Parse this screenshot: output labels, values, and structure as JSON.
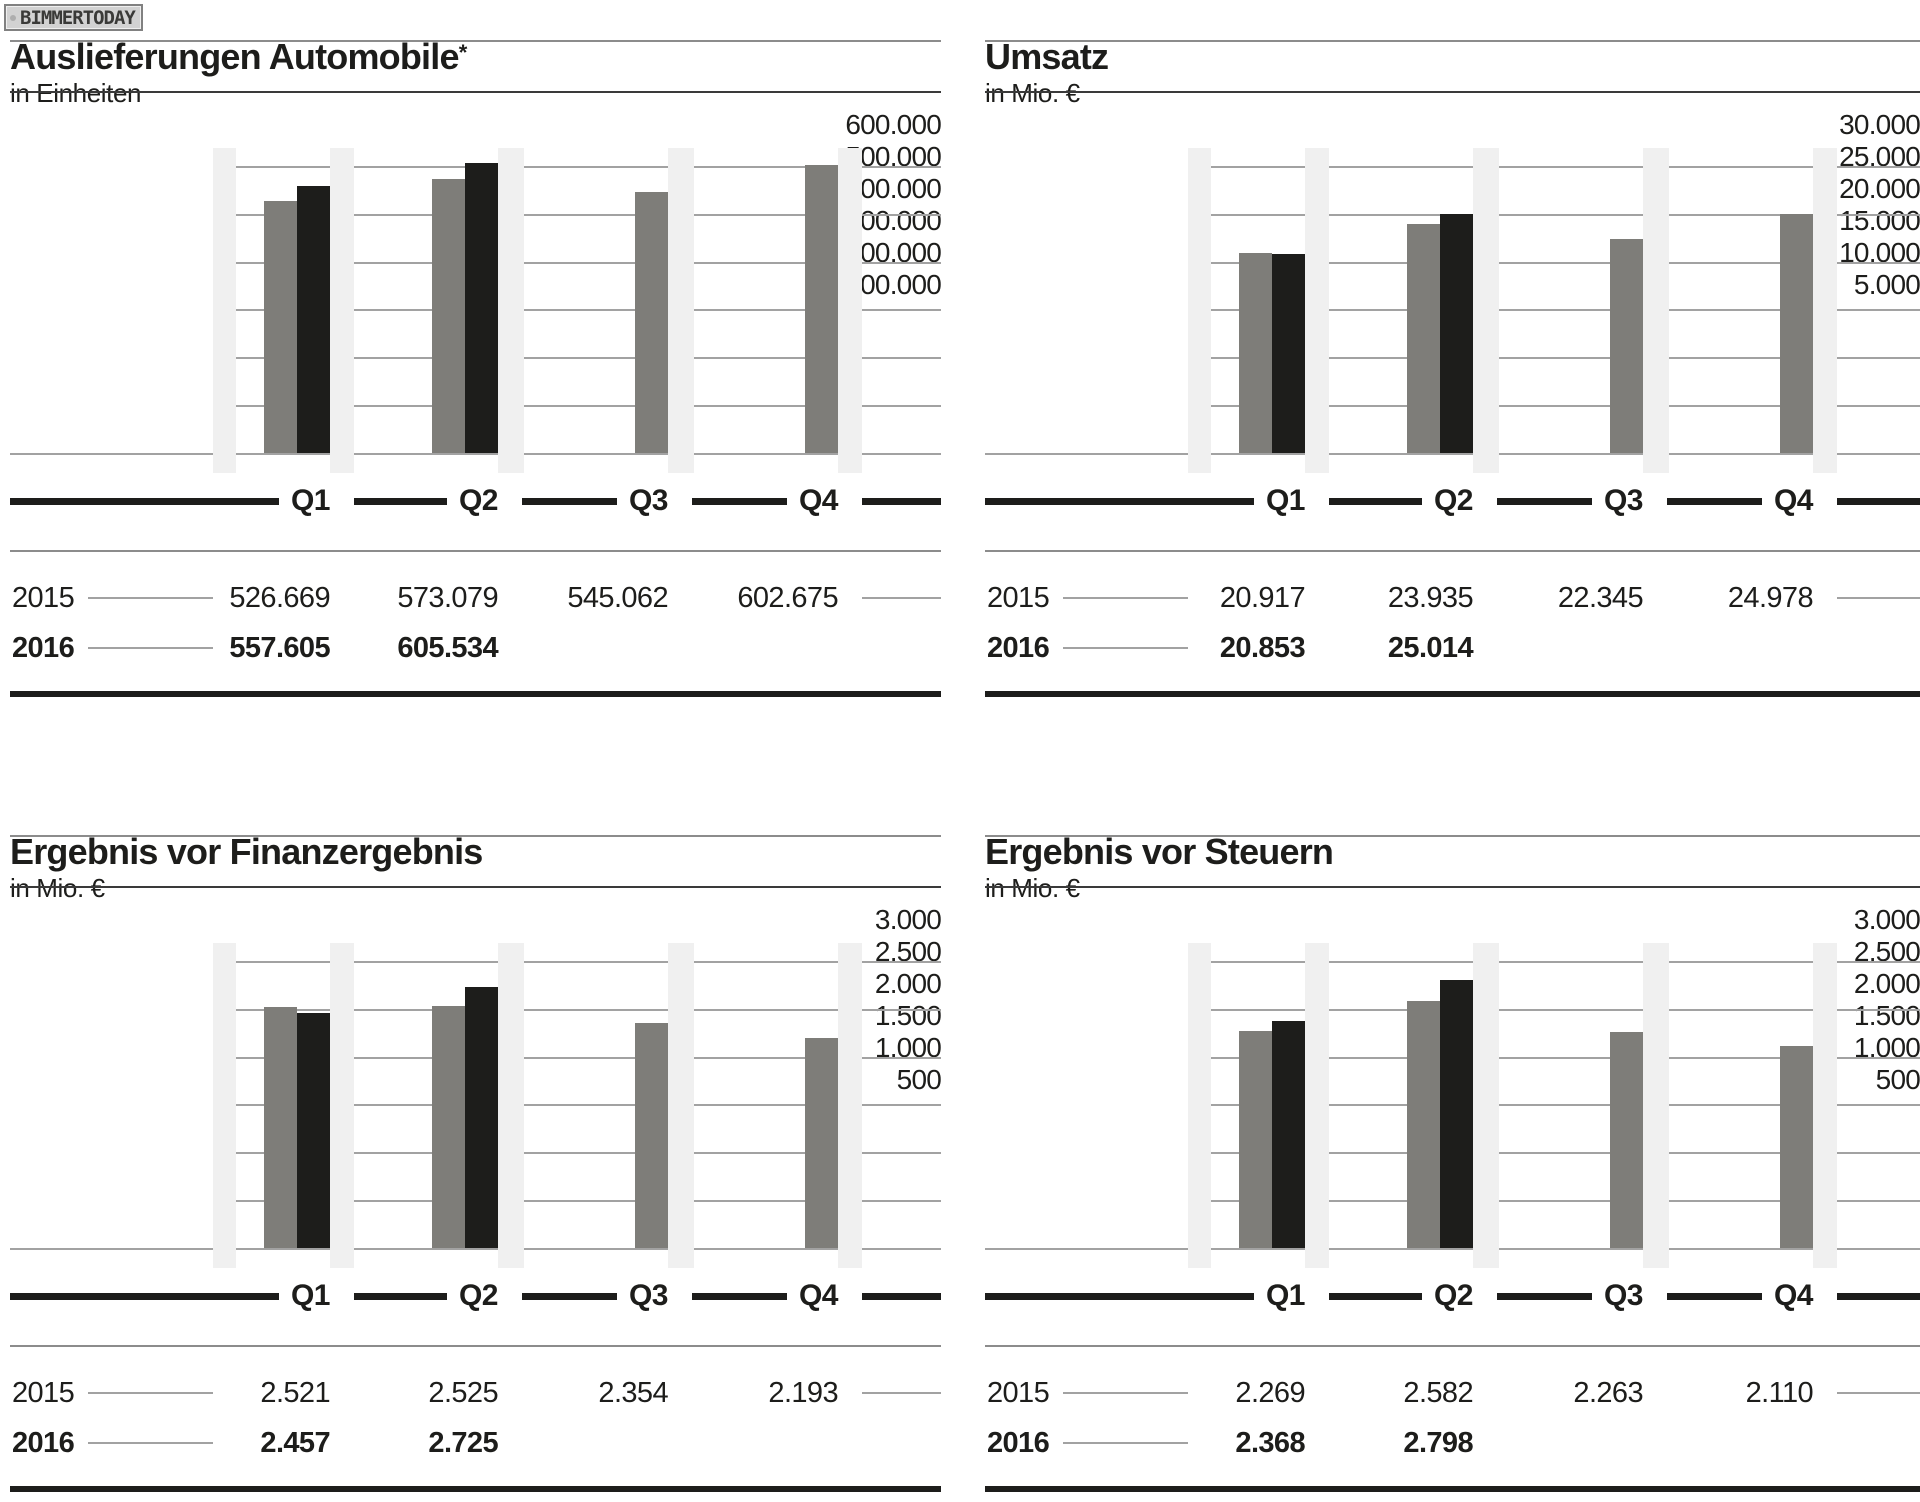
{
  "logo": {
    "text": "BIMMERTODAY"
  },
  "colors": {
    "text": "#1d1d1b",
    "bar_2015": "#7e7d79",
    "bar_2016": "#1d1d1b",
    "gridline": "#a2a2a2",
    "thin_rule": "#8c8c8c",
    "title_rule": "#3a3a3a",
    "table_rule": "#a2a2a2",
    "band": "#f0f0f0",
    "thick_rule": "#1d1d1b"
  },
  "chart_data": [
    {
      "type": "bar",
      "title": "Auslieferungen Automobile",
      "title_superscript": "*",
      "subtitle": "in Einheiten",
      "categories": [
        "Q1",
        "Q2",
        "Q3",
        "Q4"
      ],
      "ylim": [
        0,
        600000
      ],
      "grid": true,
      "legend_position": "none",
      "ytick_labels": [
        "600.000",
        "500.000",
        "400.000",
        "300.000",
        "200.000",
        "100.000"
      ],
      "series": [
        {
          "name": "2015",
          "color_key": "bar_2015",
          "values": [
            526669,
            573079,
            545062,
            602675
          ]
        },
        {
          "name": "2016",
          "color_key": "bar_2016",
          "values": [
            557605,
            605534,
            null,
            null
          ]
        }
      ],
      "table": {
        "rows": [
          {
            "year": "2015",
            "bold": false,
            "trailing_line": true,
            "values": [
              "526.669",
              "573.079",
              "545.062",
              "602.675"
            ]
          },
          {
            "year": "2016",
            "bold": true,
            "trailing_line": false,
            "values": [
              "557.605",
              "605.534",
              "",
              ""
            ]
          }
        ]
      }
    },
    {
      "type": "bar",
      "title": "Umsatz",
      "title_superscript": "",
      "subtitle": "in Mio. €",
      "categories": [
        "Q1",
        "Q2",
        "Q3",
        "Q4"
      ],
      "ylim": [
        0,
        30000
      ],
      "grid": true,
      "legend_position": "none",
      "ytick_labels": [
        "30.000",
        "25.000",
        "20.000",
        "15.000",
        "10.000",
        "5.000"
      ],
      "series": [
        {
          "name": "2015",
          "color_key": "bar_2015",
          "values": [
            20917,
            23935,
            22345,
            24978
          ]
        },
        {
          "name": "2016",
          "color_key": "bar_2016",
          "values": [
            20853,
            25014,
            null,
            null
          ]
        }
      ],
      "table": {
        "rows": [
          {
            "year": "2015",
            "bold": false,
            "trailing_line": true,
            "values": [
              "20.917",
              "23.935",
              "22.345",
              "24.978"
            ]
          },
          {
            "year": "2016",
            "bold": true,
            "trailing_line": false,
            "values": [
              "20.853",
              "25.014",
              "",
              ""
            ]
          }
        ]
      }
    },
    {
      "type": "bar",
      "title": "Ergebnis vor Finanzergebnis",
      "title_superscript": "",
      "subtitle": "in Mio. €",
      "categories": [
        "Q1",
        "Q2",
        "Q3",
        "Q4"
      ],
      "ylim": [
        0,
        3000
      ],
      "grid": true,
      "legend_position": "none",
      "ytick_labels": [
        "3.000",
        "2.500",
        "2.000",
        "1.500",
        "1.000",
        "500"
      ],
      "series": [
        {
          "name": "2015",
          "color_key": "bar_2015",
          "values": [
            2521,
            2525,
            2354,
            2193
          ]
        },
        {
          "name": "2016",
          "color_key": "bar_2016",
          "values": [
            2457,
            2725,
            null,
            null
          ]
        }
      ],
      "table": {
        "rows": [
          {
            "year": "2015",
            "bold": false,
            "trailing_line": true,
            "values": [
              "2.521",
              "2.525",
              "2.354",
              "2.193"
            ]
          },
          {
            "year": "2016",
            "bold": true,
            "trailing_line": false,
            "values": [
              "2.457",
              "2.725",
              "",
              ""
            ]
          }
        ]
      }
    },
    {
      "type": "bar",
      "title": "Ergebnis vor Steuern",
      "title_superscript": "",
      "subtitle": "in Mio. €",
      "categories": [
        "Q1",
        "Q2",
        "Q3",
        "Q4"
      ],
      "ylim": [
        0,
        3000
      ],
      "grid": true,
      "legend_position": "none",
      "ytick_labels": [
        "3.000",
        "2.500",
        "2.000",
        "1.500",
        "1.000",
        "500"
      ],
      "series": [
        {
          "name": "2015",
          "color_key": "bar_2015",
          "values": [
            2269,
            2582,
            2263,
            2110
          ]
        },
        {
          "name": "2016",
          "color_key": "bar_2016",
          "values": [
            2368,
            2798,
            null,
            null
          ]
        }
      ],
      "table": {
        "rows": [
          {
            "year": "2015",
            "bold": false,
            "trailing_line": true,
            "values": [
              "2.269",
              "2.582",
              "2.263",
              "2.110"
            ]
          },
          {
            "year": "2016",
            "bold": true,
            "trailing_line": false,
            "values": [
              "2.368",
              "2.798",
              "",
              ""
            ]
          }
        ]
      }
    }
  ]
}
